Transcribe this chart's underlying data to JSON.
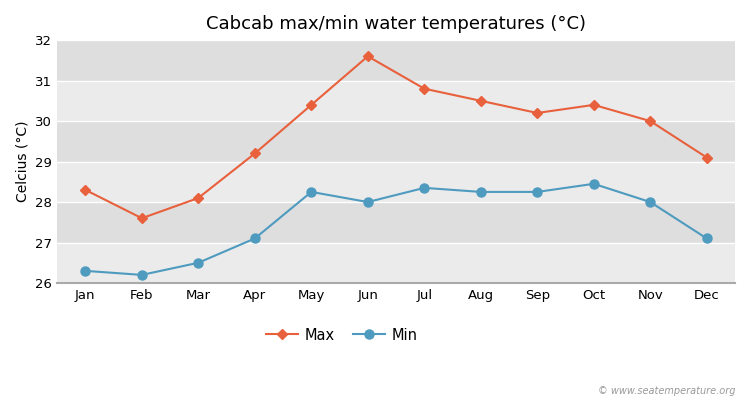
{
  "title": "Cabcab max/min water temperatures (°C)",
  "xlabel": "",
  "ylabel": "Celcius (°C)",
  "months": [
    "Jan",
    "Feb",
    "Mar",
    "Apr",
    "May",
    "Jun",
    "Jul",
    "Aug",
    "Sep",
    "Oct",
    "Nov",
    "Dec"
  ],
  "max_values": [
    28.3,
    27.6,
    28.1,
    29.2,
    30.4,
    31.6,
    30.8,
    30.5,
    30.2,
    30.4,
    30.0,
    29.1
  ],
  "min_values": [
    26.3,
    26.2,
    26.5,
    27.1,
    28.25,
    28.0,
    28.35,
    28.25,
    28.25,
    28.45,
    28.0,
    27.1
  ],
  "max_color": "#e8603c",
  "min_color": "#4e9bbf",
  "fig_bg_color": "#ffffff",
  "plot_bg_color_light": "#ebebeb",
  "plot_bg_color_dark": "#dedede",
  "grid_color": "#ffffff",
  "ylim_min": 26,
  "ylim_max": 32,
  "yticks": [
    26,
    27,
    28,
    29,
    30,
    31,
    32
  ],
  "legend_max": "Max",
  "legend_min": "Min",
  "watermark": "© www.seatemperature.org",
  "title_fontsize": 13,
  "axis_fontsize": 10,
  "tick_fontsize": 9.5
}
